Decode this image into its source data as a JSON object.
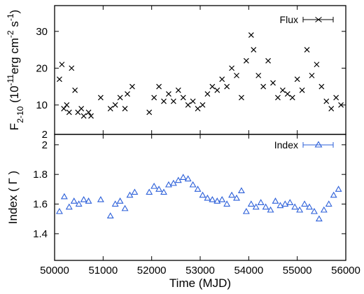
{
  "chart_data": [
    {
      "type": "scatter",
      "panel": "top",
      "ylabel_main": "F",
      "ylabel_sub": "2-10",
      "ylabel_rest_a": " (10",
      "ylabel_sup1": "-11",
      "ylabel_rest_b": "erg cm",
      "ylabel_sup2": "-2",
      "ylabel_rest_c": " s",
      "ylabel_sup3": "-1",
      "ylabel_rest_d": ")",
      "xlim": [
        50000,
        56000
      ],
      "ylim": [
        2,
        37
      ],
      "yticks": [
        2,
        10,
        20,
        30
      ],
      "ytick_labels": [
        "2",
        "10",
        "20",
        "30"
      ],
      "log_scale": false,
      "grid": false,
      "legend_position": "top-right",
      "series": [
        {
          "name": "Flux",
          "color": "#000000",
          "marker": "x",
          "points": [
            [
              50100,
              17
            ],
            [
              50150,
              21
            ],
            [
              50190,
              9
            ],
            [
              50250,
              10
            ],
            [
              50300,
              8
            ],
            [
              50350,
              20
            ],
            [
              50420,
              14
            ],
            [
              50480,
              8
            ],
            [
              50550,
              9
            ],
            [
              50600,
              7
            ],
            [
              50700,
              8
            ],
            [
              50750,
              7
            ],
            [
              50950,
              12
            ],
            [
              51150,
              9
            ],
            [
              51250,
              10
            ],
            [
              51350,
              12
            ],
            [
              51450,
              9
            ],
            [
              51500,
              13
            ],
            [
              51600,
              15
            ],
            [
              51950,
              8
            ],
            [
              52050,
              12
            ],
            [
              52150,
              15
            ],
            [
              52250,
              11
            ],
            [
              52350,
              13
            ],
            [
              52450,
              11
            ],
            [
              52550,
              14
            ],
            [
              52650,
              12
            ],
            [
              52750,
              10
            ],
            [
              52850,
              11
            ],
            [
              52950,
              9
            ],
            [
              53050,
              10
            ],
            [
              53150,
              13
            ],
            [
              53250,
              15
            ],
            [
              53350,
              14
            ],
            [
              53450,
              17
            ],
            [
              53550,
              15
            ],
            [
              53650,
              20
            ],
            [
              53750,
              18
            ],
            [
              53850,
              12
            ],
            [
              53950,
              22
            ],
            [
              54050,
              29
            ],
            [
              54100,
              25
            ],
            [
              54200,
              18
            ],
            [
              54300,
              15
            ],
            [
              54400,
              22
            ],
            [
              54500,
              16
            ],
            [
              54600,
              12
            ],
            [
              54700,
              14
            ],
            [
              54800,
              13
            ],
            [
              54900,
              12
            ],
            [
              55000,
              17
            ],
            [
              55100,
              14
            ],
            [
              55200,
              25
            ],
            [
              55300,
              18
            ],
            [
              55400,
              21
            ],
            [
              55500,
              15
            ],
            [
              55600,
              11
            ],
            [
              55700,
              9
            ],
            [
              55800,
              12
            ],
            [
              55900,
              10
            ]
          ]
        }
      ]
    },
    {
      "type": "scatter",
      "panel": "bottom",
      "xlabel": "Time (MJD)",
      "ylabel": "Index ( Γ )",
      "xlim": [
        50000,
        56000
      ],
      "ylim": [
        1.22,
        2.07
      ],
      "xticks": [
        50000,
        51000,
        52000,
        53000,
        54000,
        55000,
        56000
      ],
      "xtick_labels": [
        "50000",
        "51000",
        "52000",
        "53000",
        "54000",
        "55000",
        "56000"
      ],
      "yticks": [
        1.4,
        1.6,
        1.8,
        2.0
      ],
      "ytick_labels": [
        "1.4",
        "1.6",
        "1.8",
        "2"
      ],
      "log_scale": false,
      "grid": false,
      "legend_position": "top-right",
      "series": [
        {
          "name": "Index",
          "color": "#2b5fd9",
          "marker": "triangle-with-errorbars",
          "points": [
            [
              50100,
              1.55
            ],
            [
              50200,
              1.65
            ],
            [
              50300,
              1.58
            ],
            [
              50400,
              1.62
            ],
            [
              50500,
              1.6
            ],
            [
              50600,
              1.63
            ],
            [
              50700,
              1.62
            ],
            [
              50950,
              1.63
            ],
            [
              51150,
              1.52
            ],
            [
              51250,
              1.6
            ],
            [
              51350,
              1.62
            ],
            [
              51450,
              1.57
            ],
            [
              51550,
              1.66
            ],
            [
              51650,
              1.68
            ],
            [
              51950,
              1.68
            ],
            [
              52050,
              1.72
            ],
            [
              52150,
              1.7
            ],
            [
              52250,
              1.68
            ],
            [
              52350,
              1.73
            ],
            [
              52450,
              1.74
            ],
            [
              52550,
              1.76
            ],
            [
              52650,
              1.78
            ],
            [
              52750,
              1.77
            ],
            [
              52850,
              1.73
            ],
            [
              52950,
              1.7
            ],
            [
              53050,
              1.66
            ],
            [
              53150,
              1.64
            ],
            [
              53250,
              1.63
            ],
            [
              53350,
              1.62
            ],
            [
              53450,
              1.63
            ],
            [
              53550,
              1.6
            ],
            [
              53650,
              1.66
            ],
            [
              53750,
              1.64
            ],
            [
              53850,
              1.69
            ],
            [
              53950,
              1.55
            ],
            [
              54050,
              1.6
            ],
            [
              54150,
              1.58
            ],
            [
              54250,
              1.61
            ],
            [
              54350,
              1.58
            ],
            [
              54450,
              1.56
            ],
            [
              54550,
              1.62
            ],
            [
              54650,
              1.59
            ],
            [
              54750,
              1.6
            ],
            [
              54850,
              1.61
            ],
            [
              54950,
              1.58
            ],
            [
              55050,
              1.56
            ],
            [
              55150,
              1.6
            ],
            [
              55250,
              1.58
            ],
            [
              55350,
              1.55
            ],
            [
              55450,
              1.5
            ],
            [
              55550,
              1.56
            ],
            [
              55650,
              1.6
            ],
            [
              55750,
              1.66
            ],
            [
              55850,
              1.7
            ]
          ]
        }
      ]
    }
  ]
}
